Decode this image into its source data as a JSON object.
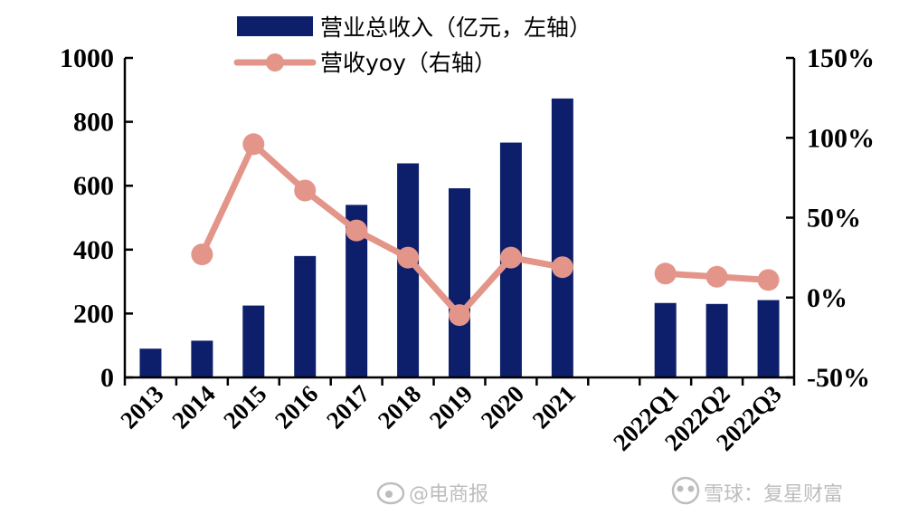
{
  "colors": {
    "bar": "#0d1f6b",
    "line": "#e3958a",
    "axis": "#000000",
    "watermark": "#bdbdbd"
  },
  "chart_data": {
    "type": "bar",
    "categories": [
      "2013",
      "2014",
      "2015",
      "2016",
      "2017",
      "2018",
      "2019",
      "2020",
      "2021",
      "",
      "2022Q1",
      "2022Q2",
      "2022Q3"
    ],
    "series": [
      {
        "name": "营业总收入（亿元，左轴）",
        "type": "bar",
        "axis": "left",
        "values": [
          90,
          115,
          225,
          380,
          540,
          670,
          592,
          735,
          873,
          null,
          233,
          230,
          242
        ]
      },
      {
        "name": "营收yoy（右轴）",
        "type": "line",
        "axis": "right",
        "values": [
          null,
          27,
          96,
          67,
          42,
          25,
          -11,
          25,
          19,
          null,
          15,
          13,
          11
        ]
      }
    ],
    "y_left": {
      "lim": [
        0,
        1000
      ],
      "ticks": [
        "0",
        "200",
        "400",
        "600",
        "800",
        "1000"
      ]
    },
    "y_right": {
      "lim": [
        -50,
        150
      ],
      "ticks": [
        "-50%",
        "0%",
        "50%",
        "100%",
        "150%"
      ]
    },
    "legend_position": "top-center",
    "grid": false
  },
  "watermarks": {
    "left": "@电商报",
    "right": "雪球：复星财富"
  }
}
